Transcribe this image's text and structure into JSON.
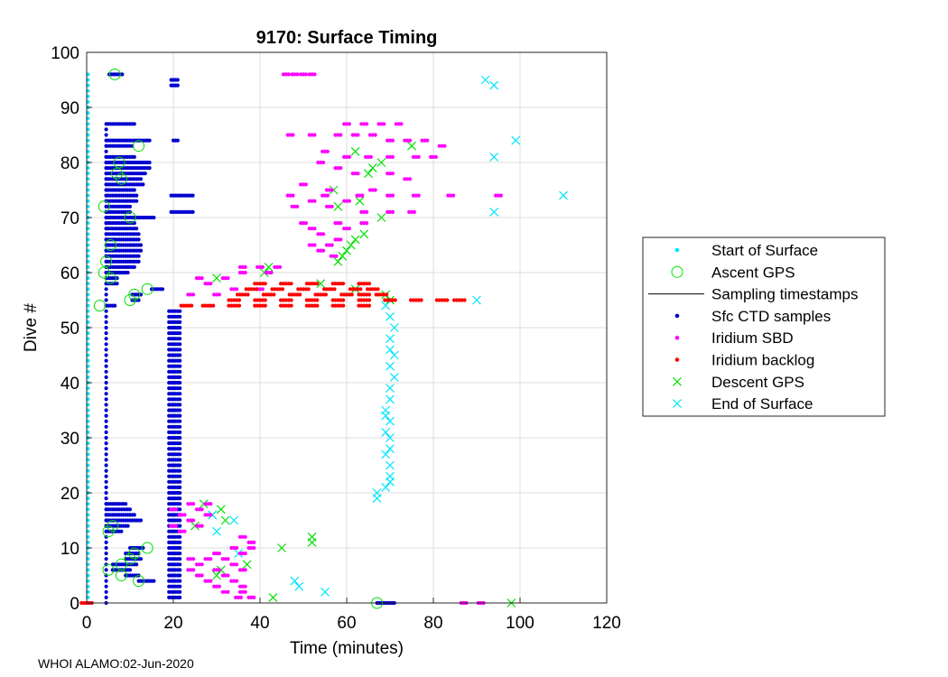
{
  "chart_data": {
    "type": "scatter",
    "title": "9170: Surface Timing",
    "xlabel": "Time (minutes)",
    "ylabel": "Dive #",
    "xlim": [
      0,
      120
    ],
    "ylim": [
      0,
      100
    ],
    "x_ticks": [
      0,
      20,
      40,
      60,
      80,
      100,
      120
    ],
    "y_ticks": [
      0,
      10,
      20,
      30,
      40,
      50,
      60,
      70,
      80,
      90,
      100
    ],
    "grid": true,
    "legend_position": "right",
    "legend": [
      {
        "label": "Start of Surface",
        "marker": "dot",
        "color": "#00e5ff"
      },
      {
        "label": "Ascent GPS",
        "marker": "circle",
        "color": "#00e000"
      },
      {
        "label": "Sampling timestamps",
        "marker": "line",
        "color": "#000000"
      },
      {
        "label": "Sfc CTD samples",
        "marker": "dot",
        "color": "#0000d0"
      },
      {
        "label": "Iridium SBD",
        "marker": "dot",
        "color": "#ff00ff"
      },
      {
        "label": "Iridium backlog",
        "marker": "dot",
        "color": "#ff0000"
      },
      {
        "label": "Descent GPS",
        "marker": "x",
        "color": "#00e000"
      },
      {
        "label": "End of Surface",
        "marker": "x",
        "color": "#00e5ff"
      }
    ],
    "series": [
      {
        "name": "Ascent GPS",
        "points": [
          [
            6.5,
            96
          ],
          [
            12,
            83
          ],
          [
            7.5,
            80
          ],
          [
            7,
            78
          ],
          [
            8,
            77
          ],
          [
            4,
            72
          ],
          [
            10,
            70
          ],
          [
            5.5,
            65
          ],
          [
            4.5,
            62
          ],
          [
            4,
            60
          ],
          [
            5.5,
            59
          ],
          [
            14,
            57
          ],
          [
            11,
            56
          ],
          [
            10,
            55
          ],
          [
            3,
            54
          ],
          [
            6,
            14
          ],
          [
            5,
            13
          ],
          [
            14,
            10
          ],
          [
            11,
            9
          ],
          [
            10,
            8
          ],
          [
            8,
            7
          ],
          [
            5,
            6
          ],
          [
            8,
            5
          ],
          [
            12,
            4
          ],
          [
            67,
            0
          ]
        ]
      },
      {
        "name": "Descent GPS",
        "points": [
          [
            75,
            83
          ],
          [
            62,
            82
          ],
          [
            68,
            80
          ],
          [
            66,
            79
          ],
          [
            65,
            78
          ],
          [
            57,
            75
          ],
          [
            63,
            73
          ],
          [
            58,
            72
          ],
          [
            68,
            70
          ],
          [
            64,
            67
          ],
          [
            62,
            66
          ],
          [
            61,
            65
          ],
          [
            60,
            64
          ],
          [
            59,
            63
          ],
          [
            58,
            62
          ],
          [
            42,
            61
          ],
          [
            41,
            60
          ],
          [
            30,
            59
          ],
          [
            54,
            58
          ],
          [
            62,
            57
          ],
          [
            69,
            56
          ],
          [
            70,
            55
          ],
          [
            31,
            17
          ],
          [
            27,
            18
          ],
          [
            25,
            14
          ],
          [
            29,
            16
          ],
          [
            32,
            15
          ],
          [
            52,
            12
          ],
          [
            45,
            10
          ],
          [
            52,
            11
          ],
          [
            37,
            7
          ],
          [
            31,
            6
          ],
          [
            30,
            5
          ],
          [
            43,
            1
          ],
          [
            98,
            0
          ]
        ]
      },
      {
        "name": "End of Surface",
        "points": [
          [
            92,
            95
          ],
          [
            94,
            94
          ],
          [
            99,
            84
          ],
          [
            94,
            81
          ],
          [
            110,
            74
          ],
          [
            94,
            71
          ],
          [
            90,
            55
          ],
          [
            69,
            54
          ],
          [
            70,
            52
          ],
          [
            71,
            50
          ],
          [
            70,
            48
          ],
          [
            70,
            46
          ],
          [
            71,
            45
          ],
          [
            70,
            43
          ],
          [
            71,
            41
          ],
          [
            70,
            39
          ],
          [
            70,
            37
          ],
          [
            69,
            35
          ],
          [
            69,
            34
          ],
          [
            70,
            33
          ],
          [
            69,
            31
          ],
          [
            70,
            30
          ],
          [
            70,
            28
          ],
          [
            69,
            27
          ],
          [
            70,
            25
          ],
          [
            70,
            23
          ],
          [
            70,
            22
          ],
          [
            69,
            21
          ],
          [
            67,
            20
          ],
          [
            67,
            19
          ],
          [
            34,
            15
          ],
          [
            30,
            13
          ],
          [
            29,
            16
          ],
          [
            35,
            9
          ],
          [
            48,
            4
          ],
          [
            49,
            3
          ],
          [
            55,
            2
          ]
        ]
      },
      {
        "name": "Iridium SBD",
        "points": [
          [
            46,
            96
          ],
          [
            48,
            96
          ],
          [
            50,
            96
          ],
          [
            52,
            96
          ],
          [
            47,
            85
          ],
          [
            52,
            85
          ],
          [
            58,
            85
          ],
          [
            62,
            85
          ],
          [
            66,
            85
          ],
          [
            70,
            84
          ],
          [
            74,
            84
          ],
          [
            78,
            84
          ],
          [
            82,
            83
          ],
          [
            60,
            87
          ],
          [
            64,
            87
          ],
          [
            68,
            87
          ],
          [
            72,
            87
          ],
          [
            55,
            82
          ],
          [
            60,
            81
          ],
          [
            65,
            81
          ],
          [
            70,
            81
          ],
          [
            76,
            81
          ],
          [
            80,
            81
          ],
          [
            54,
            80
          ],
          [
            58,
            79
          ],
          [
            62,
            78
          ],
          [
            70,
            78
          ],
          [
            74,
            77
          ],
          [
            50,
            76
          ],
          [
            56,
            75
          ],
          [
            66,
            75
          ],
          [
            47,
            74
          ],
          [
            55,
            74
          ],
          [
            63,
            74
          ],
          [
            70,
            74
          ],
          [
            76,
            74
          ],
          [
            84,
            74
          ],
          [
            95,
            74
          ],
          [
            52,
            73
          ],
          [
            60,
            73
          ],
          [
            48,
            72
          ],
          [
            56,
            72
          ],
          [
            64,
            71
          ],
          [
            70,
            71
          ],
          [
            75,
            71
          ],
          [
            50,
            69
          ],
          [
            58,
            69
          ],
          [
            64,
            69
          ],
          [
            52,
            68
          ],
          [
            60,
            68
          ],
          [
            54,
            67
          ],
          [
            58,
            66
          ],
          [
            52,
            65
          ],
          [
            56,
            65
          ],
          [
            54,
            64
          ],
          [
            57,
            63
          ],
          [
            36,
            61
          ],
          [
            40,
            61
          ],
          [
            44,
            61
          ],
          [
            36,
            60
          ],
          [
            42,
            60
          ],
          [
            26,
            59
          ],
          [
            32,
            59
          ],
          [
            28,
            58
          ],
          [
            34,
            57
          ],
          [
            40,
            57
          ],
          [
            24,
            56
          ],
          [
            30,
            56
          ],
          [
            24,
            18
          ],
          [
            28,
            18
          ],
          [
            20,
            17
          ],
          [
            26,
            17
          ],
          [
            22,
            16
          ],
          [
            28,
            16
          ],
          [
            24,
            15
          ],
          [
            20,
            14
          ],
          [
            26,
            14
          ],
          [
            22,
            13
          ],
          [
            36,
            12
          ],
          [
            38,
            11
          ],
          [
            34,
            10
          ],
          [
            38,
            10
          ],
          [
            30,
            9
          ],
          [
            36,
            9
          ],
          [
            24,
            8
          ],
          [
            28,
            8
          ],
          [
            32,
            8
          ],
          [
            26,
            7
          ],
          [
            34,
            7
          ],
          [
            24,
            6
          ],
          [
            30,
            6
          ],
          [
            36,
            6
          ],
          [
            26,
            5
          ],
          [
            32,
            5
          ],
          [
            28,
            4
          ],
          [
            34,
            4
          ],
          [
            30,
            3
          ],
          [
            36,
            3
          ],
          [
            32,
            2
          ],
          [
            36,
            2
          ],
          [
            35,
            1
          ],
          [
            38,
            1
          ],
          [
            87,
            0
          ],
          [
            91,
            0
          ]
        ]
      },
      {
        "name": "Iridium backlog",
        "points": [
          [
            40,
            58
          ],
          [
            46,
            58
          ],
          [
            52,
            58
          ],
          [
            58,
            58
          ],
          [
            64,
            58
          ],
          [
            38,
            57
          ],
          [
            44,
            57
          ],
          [
            50,
            57
          ],
          [
            56,
            57
          ],
          [
            62,
            57
          ],
          [
            66,
            57
          ],
          [
            36,
            56
          ],
          [
            42,
            56
          ],
          [
            48,
            56
          ],
          [
            54,
            56
          ],
          [
            60,
            56
          ],
          [
            64,
            56
          ],
          [
            68,
            56
          ],
          [
            34,
            55
          ],
          [
            40,
            55
          ],
          [
            46,
            55
          ],
          [
            52,
            55
          ],
          [
            58,
            55
          ],
          [
            64,
            55
          ],
          [
            70,
            55
          ],
          [
            76,
            55
          ],
          [
            82,
            55
          ],
          [
            86,
            55
          ],
          [
            23,
            54
          ],
          [
            28,
            54
          ],
          [
            34,
            54
          ],
          [
            40,
            54
          ],
          [
            46,
            54
          ],
          [
            52,
            54
          ],
          [
            58,
            54
          ],
          [
            64,
            54
          ],
          [
            0,
            0
          ]
        ]
      }
    ],
    "ctd_rows": [
      {
        "dive": 96,
        "x1": 5.2,
        "x2": 8.2
      },
      {
        "dive": 87,
        "x1": 5.0,
        "x2": 11.0
      },
      {
        "dive": 84,
        "x1": 5.0,
        "x2": 14.5
      },
      {
        "dive": 83,
        "x1": 4.5,
        "x2": 10.5
      },
      {
        "dive": 81,
        "x1": 4.5,
        "x2": 11.0
      },
      {
        "dive": 80,
        "x1": 4.5,
        "x2": 14.5
      },
      {
        "dive": 79,
        "x1": 4.5,
        "x2": 14.5
      },
      {
        "dive": 78,
        "x1": 4.5,
        "x2": 13.5
      },
      {
        "dive": 77,
        "x1": 4.5,
        "x2": 12.5
      },
      {
        "dive": 76,
        "x1": 4.5,
        "x2": 13.0
      },
      {
        "dive": 75,
        "x1": 4.5,
        "x2": 11.0
      },
      {
        "dive": 74,
        "x1": 4.5,
        "x2": 11.5
      },
      {
        "dive": 73,
        "x1": 4.5,
        "x2": 11.5
      },
      {
        "dive": 72,
        "x1": 4.5,
        "x2": 10.0
      },
      {
        "dive": 71,
        "x1": 4.5,
        "x2": 10.0
      },
      {
        "dive": 70,
        "x1": 4.5,
        "x2": 15.5
      },
      {
        "dive": 69,
        "x1": 4.5,
        "x2": 11.0
      },
      {
        "dive": 68,
        "x1": 4.5,
        "x2": 11.5
      },
      {
        "dive": 67,
        "x1": 4.5,
        "x2": 12.0
      },
      {
        "dive": 66,
        "x1": 4.5,
        "x2": 12.0
      },
      {
        "dive": 65,
        "x1": 4.5,
        "x2": 12.5
      },
      {
        "dive": 64,
        "x1": 4.5,
        "x2": 12.5
      },
      {
        "dive": 63,
        "x1": 4.5,
        "x2": 12.0
      },
      {
        "dive": 62,
        "x1": 4.5,
        "x2": 12.0
      },
      {
        "dive": 61,
        "x1": 4.5,
        "x2": 11.0
      },
      {
        "dive": 60,
        "x1": 4.5,
        "x2": 9.5
      },
      {
        "dive": 59,
        "x1": 4.5,
        "x2": 7.0
      },
      {
        "dive": 58,
        "x1": 4.5,
        "x2": 7.0
      },
      {
        "dive": 57,
        "x1": 15.0,
        "x2": 17.5
      },
      {
        "dive": 56,
        "x1": 10.5,
        "x2": 12.5
      },
      {
        "dive": 55,
        "x1": 10.5,
        "x2": 12.0
      },
      {
        "dive": 54,
        "x1": 4.5,
        "x2": 6.5
      },
      {
        "dive": 18,
        "x1": 4.5,
        "x2": 9.0
      },
      {
        "dive": 17,
        "x1": 4.5,
        "x2": 10.0
      },
      {
        "dive": 16,
        "x1": 4.5,
        "x2": 11.0
      },
      {
        "dive": 15,
        "x1": 4.5,
        "x2": 12.5
      },
      {
        "dive": 14,
        "x1": 4.5,
        "x2": 9.5
      },
      {
        "dive": 13,
        "x1": 4.5,
        "x2": 8.0
      },
      {
        "dive": 10,
        "x1": 10.0,
        "x2": 13.0
      },
      {
        "dive": 9,
        "x1": 9.0,
        "x2": 12.0
      },
      {
        "dive": 8,
        "x1": 9.0,
        "x2": 12.5
      },
      {
        "dive": 7,
        "x1": 6.0,
        "x2": 11.5
      },
      {
        "dive": 6,
        "x1": 6.0,
        "x2": 10.0
      },
      {
        "dive": 5,
        "x1": 9.0,
        "x2": 12.0
      },
      {
        "dive": 4,
        "x1": 12.0,
        "x2": 15.5
      },
      {
        "dive": 0,
        "x1": 67.0,
        "x2": 71.0
      }
    ],
    "ctd_block": {
      "dive_from": 1,
      "dive_to": 53,
      "x1": 19.0,
      "x2": 21.5
    },
    "ctd_block_extra": [
      {
        "dive": 94,
        "x1": 19.5,
        "x2": 21.0
      },
      {
        "dive": 95,
        "x1": 19.5,
        "x2": 21.0
      },
      {
        "dive": 84,
        "x1": 20.0,
        "x2": 21.0
      },
      {
        "dive": 74,
        "x1": 19.5,
        "x2": 24.5
      },
      {
        "dive": 71,
        "x1": 19.5,
        "x2": 24.5
      }
    ],
    "ctd_column": {
      "x": 4.5,
      "dive_from": 0,
      "dive_to": 87
    },
    "start_surface_column": {
      "x": 0.3,
      "dive_from": 0,
      "dive_to": 96
    }
  },
  "footer_text": "WHOI ALAMO:02-Jun-2020"
}
